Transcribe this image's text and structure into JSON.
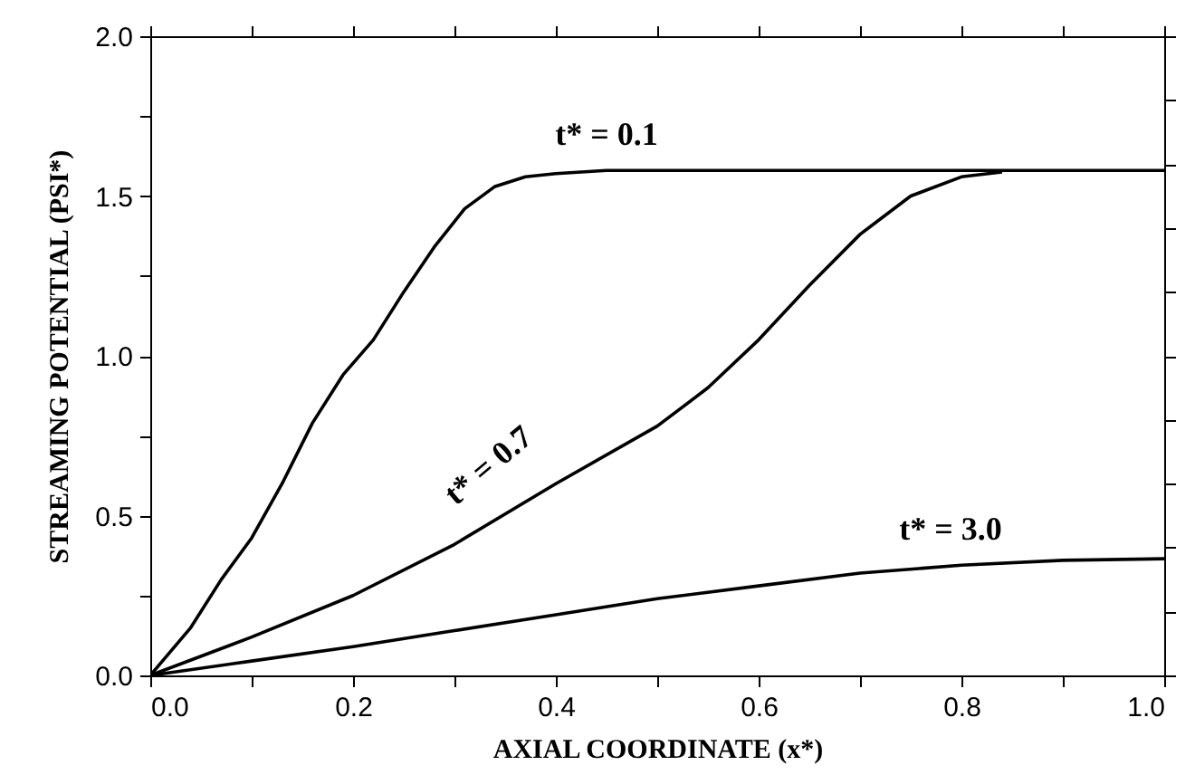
{
  "chart_data": {
    "type": "line",
    "xlabel": "AXIAL COORDINATE (x*)",
    "ylabel": "STREAMING POTENTIAL (PSI*)",
    "xlim": [
      0,
      1
    ],
    "ylim": [
      0,
      2
    ],
    "xticks": [
      {
        "value": 0,
        "label": "0.0"
      },
      {
        "value": 0.1,
        "label": null
      },
      {
        "value": 0.2,
        "label": "0.2"
      },
      {
        "value": 0.3,
        "label": null
      },
      {
        "value": 0.4,
        "label": "0.4"
      },
      {
        "value": 0.5,
        "label": null
      },
      {
        "value": 0.6,
        "label": "0.6"
      },
      {
        "value": 0.7,
        "label": null
      },
      {
        "value": 0.8,
        "label": "0.8"
      },
      {
        "value": 0.9,
        "label": null
      },
      {
        "value": 1,
        "label": "1.0"
      }
    ],
    "yticks": [
      {
        "value": 0,
        "label": "0.0"
      },
      {
        "value": 0.25,
        "label": null
      },
      {
        "value": 0.5,
        "label": "0.5"
      },
      {
        "value": 0.75,
        "label": null
      },
      {
        "value": 1,
        "label": "1.0"
      },
      {
        "value": 1.25,
        "label": null
      },
      {
        "value": 1.5,
        "label": "1.5"
      },
      {
        "value": 1.75,
        "label": null
      },
      {
        "value": 2,
        "label": "2.0"
      }
    ],
    "grid": false,
    "line_style": "solid",
    "series": [
      {
        "name": "t* = 0.1",
        "color": "#000000",
        "x": [
          0,
          0.04,
          0.07,
          0.1,
          0.13,
          0.16,
          0.19,
          0.22,
          0.25,
          0.28,
          0.31,
          0.34,
          0.37,
          0.4,
          0.45,
          0.5,
          0.6,
          0.7,
          0.8,
          0.9,
          1
        ],
        "values": [
          0,
          0.15,
          0.3,
          0.43,
          0.6,
          0.79,
          0.94,
          1.05,
          1.2,
          1.34,
          1.46,
          1.53,
          1.56,
          1.57,
          1.58,
          1.58,
          1.58,
          1.58,
          1.58,
          1.58,
          1.58
        ]
      },
      {
        "name": "t* = 0.7",
        "color": "#000000",
        "x": [
          0,
          0.1,
          0.2,
          0.3,
          0.4,
          0.5,
          0.55,
          0.6,
          0.65,
          0.7,
          0.75,
          0.8,
          0.84
        ],
        "values": [
          0,
          0.12,
          0.25,
          0.41,
          0.6,
          0.78,
          0.9,
          1.05,
          1.22,
          1.38,
          1.5,
          1.56,
          1.575
        ]
      },
      {
        "name": "t* = 3.0",
        "color": "#000000",
        "x": [
          0,
          0.1,
          0.2,
          0.3,
          0.4,
          0.5,
          0.6,
          0.7,
          0.8,
          0.9,
          1
        ],
        "values": [
          0,
          0.045,
          0.09,
          0.14,
          0.19,
          0.24,
          0.28,
          0.32,
          0.345,
          0.36,
          0.365
        ]
      }
    ]
  }
}
